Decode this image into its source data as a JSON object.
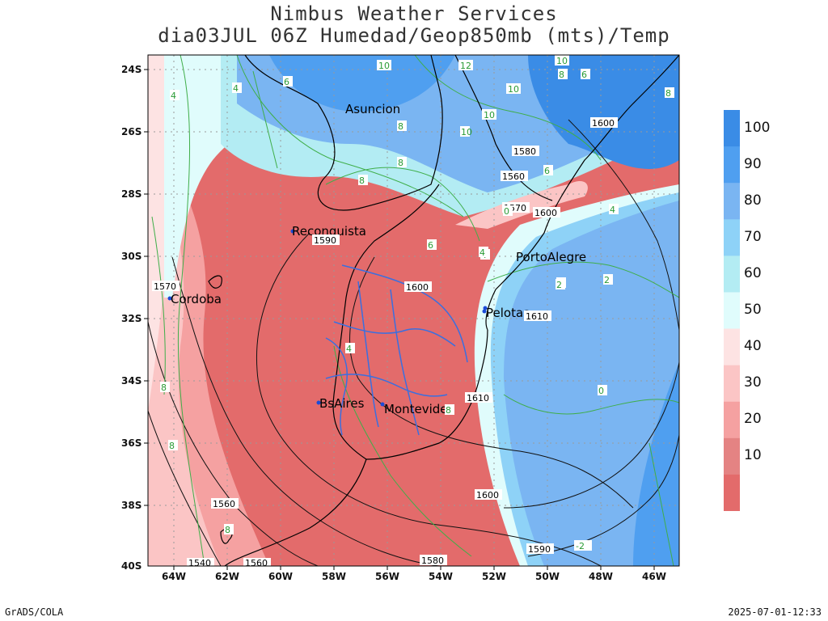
{
  "header": {
    "title": "Nimbus Weather Services",
    "subtitle": "dia03JUL 06Z Humedad/Geop850mb (mts)/Temp"
  },
  "axes": {
    "latitudes": [
      "24S",
      "26S",
      "28S",
      "30S",
      "32S",
      "34S",
      "36S",
      "38S",
      "40S"
    ],
    "longitudes": [
      "64W",
      "62W",
      "60W",
      "58W",
      "56W",
      "54W",
      "52W",
      "50W",
      "48W",
      "46W"
    ]
  },
  "cities": [
    {
      "name": "Asuncion"
    },
    {
      "name": "Reconquista"
    },
    {
      "name": "PortoAlegre"
    },
    {
      "name": "Cordoba"
    },
    {
      "name": "Pelotas"
    },
    {
      "name": "BsAires"
    },
    {
      "name": "Montevideo"
    }
  ],
  "colorbar": {
    "levels": [
      {
        "label": "100",
        "color": "#3a8ce6"
      },
      {
        "label": "90",
        "color": "#4f9ff0"
      },
      {
        "label": "80",
        "color": "#7ab5f2"
      },
      {
        "label": "70",
        "color": "#8ed2f7"
      },
      {
        "label": "60",
        "color": "#b3ecf3"
      },
      {
        "label": "50",
        "color": "#e0fcfc"
      },
      {
        "label": "40",
        "color": "#fde3e3"
      },
      {
        "label": "30",
        "color": "#fbc5c5"
      },
      {
        "label": "20",
        "color": "#f5a1a1"
      },
      {
        "label": "10",
        "color": "#e48383"
      },
      {
        "label": "",
        "color": "#e36b6b"
      }
    ]
  },
  "geopotential_labels": [
    "1600",
    "1590",
    "1600",
    "1570",
    "1560",
    "1600",
    "1580",
    "1610",
    "1610",
    "1600",
    "1590",
    "1580",
    "1560",
    "1560",
    "1570",
    "1540"
  ],
  "temperature_labels": [
    "10",
    "10",
    "12",
    "10",
    "10",
    "8",
    "6",
    "4",
    "6",
    "4",
    "8",
    "10",
    "8",
    "8",
    "6",
    "4",
    "2",
    "4",
    "6",
    "8",
    "8",
    "4",
    "2",
    "2",
    "0",
    "4",
    "8",
    "8",
    "8",
    "-2",
    "0"
  ],
  "footer": {
    "left": "GrADS/COLA",
    "right": "2025-07-01-12:33"
  }
}
